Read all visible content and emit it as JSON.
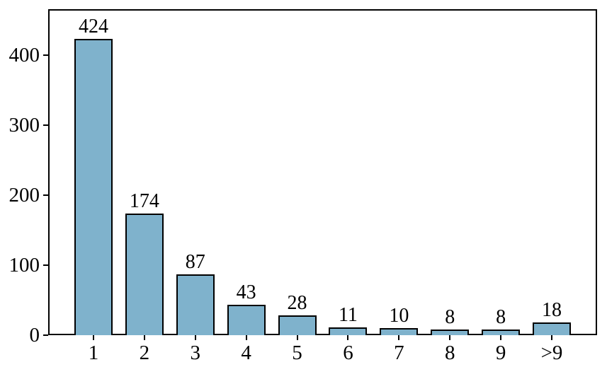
{
  "chart_data": {
    "type": "bar",
    "categories": [
      "1",
      "2",
      "3",
      "4",
      "5",
      "6",
      "7",
      "8",
      "9",
      ">9"
    ],
    "values": [
      424,
      174,
      87,
      43,
      28,
      11,
      10,
      8,
      8,
      18
    ],
    "bar_labels": [
      "424",
      "174",
      "87",
      "43",
      "28",
      "11",
      "10",
      "8",
      "8",
      "18"
    ],
    "title": "",
    "xlabel": "",
    "ylabel": "",
    "yticks": [
      0,
      100,
      200,
      300,
      400
    ],
    "ylim": [
      0,
      466
    ],
    "xlim": [
      -0.89,
      9.89
    ],
    "grid": false,
    "legend": "none",
    "bar_color": "#7fb2cc",
    "bar_edge_color": "#000000",
    "text_color": "#000000",
    "background": "#ffffff"
  }
}
